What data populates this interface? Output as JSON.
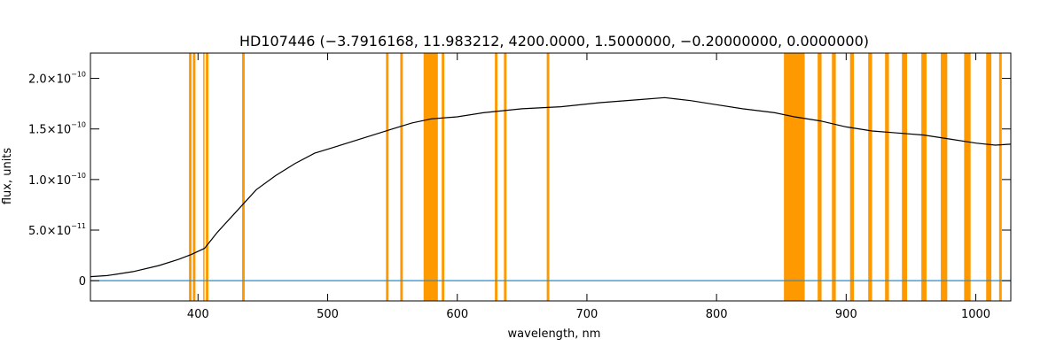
{
  "chart_data": {
    "type": "line",
    "title": "HD107446    (−3.7916168, 11.983212, 4200.0000, 1.5000000, −0.20000000, 0.0000000)",
    "xlabel": "wavelength, nm",
    "ylabel": "flux, units",
    "xlim": [
      317,
      1027
    ],
    "ylim": [
      -2e-11,
      2.25e-10
    ],
    "grid": false,
    "legend": "none",
    "x_ticks": [
      {
        "value": 400,
        "label": "400"
      },
      {
        "value": 500,
        "label": "500"
      },
      {
        "value": 600,
        "label": "600"
      },
      {
        "value": 700,
        "label": "700"
      },
      {
        "value": 800,
        "label": "800"
      },
      {
        "value": 900,
        "label": "900"
      },
      {
        "value": 1000,
        "label": "1000"
      }
    ],
    "y_ticks": [
      {
        "value": 0,
        "mantissa": "0",
        "exponent": ""
      },
      {
        "value": 5e-11,
        "mantissa": "5.0×10",
        "exponent": "−11"
      },
      {
        "value": 1e-10,
        "mantissa": "1.0×10",
        "exponent": "−10"
      },
      {
        "value": 1.5e-10,
        "mantissa": "1.5×10",
        "exponent": "−10"
      },
      {
        "value": 2e-10,
        "mantissa": "2.0×10",
        "exponent": "−10"
      }
    ],
    "series": [
      {
        "color": "#000000",
        "points": [
          [
            317,
            4e-12
          ],
          [
            330,
            5e-12
          ],
          [
            350,
            9e-12
          ],
          [
            370,
            1.5e-11
          ],
          [
            385,
            2.1e-11
          ],
          [
            395,
            2.6e-11
          ],
          [
            405,
            3.2e-11
          ],
          [
            415,
            4.8e-11
          ],
          [
            425,
            6.2e-11
          ],
          [
            435,
            7.6e-11
          ],
          [
            445,
            9e-11
          ],
          [
            460,
            1.04e-10
          ],
          [
            475,
            1.16e-10
          ],
          [
            490,
            1.26e-10
          ],
          [
            505,
            1.32e-10
          ],
          [
            520,
            1.38e-10
          ],
          [
            535,
            1.44e-10
          ],
          [
            550,
            1.5e-10
          ],
          [
            565,
            1.56e-10
          ],
          [
            580,
            1.6e-10
          ],
          [
            600,
            1.62e-10
          ],
          [
            620,
            1.66e-10
          ],
          [
            650,
            1.7e-10
          ],
          [
            680,
            1.72e-10
          ],
          [
            710,
            1.76e-10
          ],
          [
            740,
            1.79e-10
          ],
          [
            760,
            1.81e-10
          ],
          [
            780,
            1.78e-10
          ],
          [
            800,
            1.74e-10
          ],
          [
            820,
            1.7e-10
          ],
          [
            845,
            1.66e-10
          ],
          [
            860,
            1.62e-10
          ],
          [
            880,
            1.58e-10
          ],
          [
            900,
            1.52e-10
          ],
          [
            920,
            1.48e-10
          ],
          [
            940,
            1.46e-10
          ],
          [
            960,
            1.44e-10
          ],
          [
            980,
            1.4e-10
          ],
          [
            1000,
            1.36e-10
          ],
          [
            1015,
            1.34e-10
          ],
          [
            1027,
            1.35e-10
          ]
        ]
      },
      {
        "color": "#1f8fd6",
        "points": [
          [
            317,
            0
          ],
          [
            1027,
            0
          ]
        ]
      }
    ],
    "masked_regions": [
      [
        393,
        395
      ],
      [
        396,
        398
      ],
      [
        404,
        405
      ],
      [
        406,
        408
      ],
      [
        434,
        436
      ],
      [
        545,
        547
      ],
      [
        556,
        558
      ],
      [
        574,
        585
      ],
      [
        588,
        590
      ],
      [
        629,
        631
      ],
      [
        636,
        638
      ],
      [
        669,
        671
      ],
      [
        852,
        868
      ],
      [
        878,
        881
      ],
      [
        889,
        892
      ],
      [
        903,
        906
      ],
      [
        917,
        920
      ],
      [
        930,
        933
      ],
      [
        943,
        947
      ],
      [
        958,
        962
      ],
      [
        973,
        978
      ],
      [
        991,
        996
      ],
      [
        1008,
        1012
      ],
      [
        1018,
        1020
      ]
    ]
  },
  "colors": {
    "spectrum": "#000000",
    "error": "#1f8fd6",
    "mask": "#ff9900",
    "axis": "#000000"
  }
}
